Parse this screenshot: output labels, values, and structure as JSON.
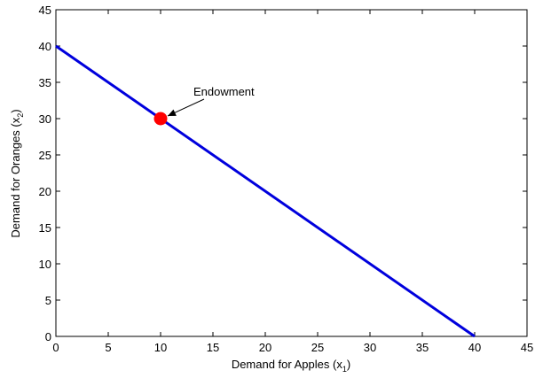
{
  "chart_data": {
    "type": "line",
    "title": "",
    "xlabel": {
      "main": "Demand for Apples (x",
      "sub": "1",
      "close": ")"
    },
    "ylabel": {
      "main": "Demand for Oranges (x",
      "sub": "2",
      "close": ")"
    },
    "xlim": [
      0,
      45
    ],
    "ylim": [
      0,
      45
    ],
    "xticks": [
      0,
      5,
      10,
      15,
      20,
      25,
      30,
      35,
      40,
      45
    ],
    "yticks": [
      0,
      5,
      10,
      15,
      20,
      25,
      30,
      35,
      40,
      45
    ],
    "grid": false,
    "series": [
      {
        "color": "#0000dd",
        "points": [
          [
            0,
            40
          ],
          [
            40,
            0
          ]
        ]
      }
    ],
    "markers": [
      {
        "x": 10,
        "y": 30,
        "color": "#ff0000"
      }
    ],
    "annotations": [
      {
        "text": "Endowment",
        "x": 10,
        "y": 30
      }
    ]
  }
}
